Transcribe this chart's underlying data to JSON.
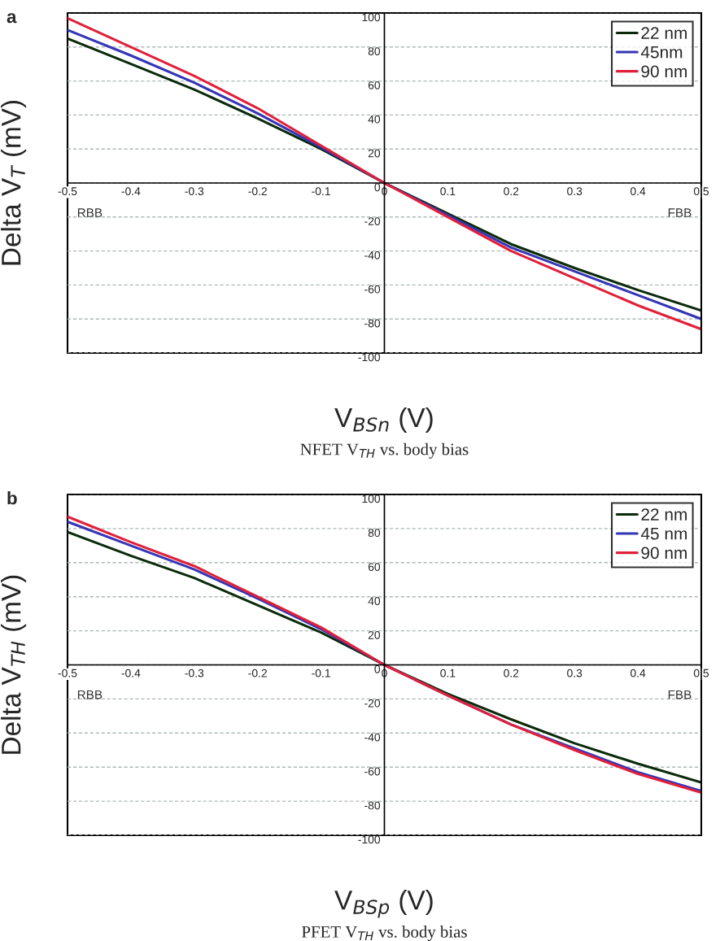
{
  "chart_data": [
    {
      "type": "line",
      "title": "a",
      "xlabel": "V$_{BSn}$ (V)",
      "ylabel": "Delta V$_{T}$ (mV)",
      "annotations": [
        "RBB",
        "FBB",
        "NFET V$_{TH}$ vs. body bias"
      ],
      "x": [
        -0.5,
        -0.4,
        -0.3,
        -0.2,
        -0.1,
        0,
        0.1,
        0.2,
        0.3,
        0.4,
        0.5
      ],
      "series": [
        {
          "name": "22 nm",
          "color": "#0a2a0a",
          "values": [
            85,
            70,
            55,
            38,
            20,
            0,
            -18,
            -36,
            -50,
            -63,
            -75
          ]
        },
        {
          "name": "45nm",
          "color": "#3535b5",
          "values": [
            90,
            75,
            59,
            41,
            21,
            0,
            -19,
            -38,
            -52,
            -66,
            -80
          ]
        },
        {
          "name": "90 nm",
          "color": "#e0203a",
          "values": [
            97,
            80,
            63,
            44,
            22,
            0,
            -20,
            -40,
            -56,
            -72,
            -86
          ]
        }
      ],
      "xlim": [
        -0.5,
        0.5
      ],
      "xticks": [
        -0.5,
        -0.4,
        -0.3,
        -0.2,
        -0.1,
        0,
        0.1,
        0.2,
        0.3,
        0.4,
        0.5
      ],
      "ylim": [
        -100,
        100
      ],
      "yticks": [
        -100,
        -80,
        -60,
        -40,
        -20,
        0,
        20,
        40,
        60,
        80,
        100
      ],
      "grid": "y",
      "legend": "top right",
      "marker": "none",
      "line_style": "solid"
    },
    {
      "type": "line",
      "title": "b",
      "xlabel": "V$_{BSp}$ (V)",
      "ylabel": "Delta V$_{TH}$ (mV)",
      "annotations": [
        "RBB",
        "FBB",
        "PFET V$_{TH}$ vs. body bias"
      ],
      "x": [
        -0.5,
        -0.4,
        -0.3,
        -0.2,
        -0.1,
        0,
        0.1,
        0.2,
        0.3,
        0.4,
        0.5
      ],
      "series": [
        {
          "name": "22 nm",
          "color": "#0a2a0a",
          "values": [
            78,
            64,
            51,
            35,
            19,
            0,
            -17,
            -32,
            -46,
            -58,
            -69
          ]
        },
        {
          "name": "45 nm",
          "color": "#3535b5",
          "values": [
            84,
            70,
            56,
            39,
            21,
            0,
            -18,
            -35,
            -49,
            -63,
            -74
          ]
        },
        {
          "name": "90 nm",
          "color": "#e0203a",
          "values": [
            87,
            72,
            58,
            40,
            22,
            0,
            -18,
            -35,
            -50,
            -64,
            -75
          ]
        }
      ],
      "xlim": [
        -0.5,
        0.5
      ],
      "xticks": [
        -0.5,
        -0.4,
        -0.3,
        -0.2,
        -0.1,
        0,
        0.1,
        0.2,
        0.3,
        0.4,
        0.5
      ],
      "ylim": [
        -100,
        100
      ],
      "yticks": [
        -100,
        -80,
        -60,
        -40,
        -20,
        0,
        20,
        40,
        60,
        80,
        100
      ],
      "grid": "y",
      "legend": "top right",
      "marker": "none",
      "line_style": "solid"
    }
  ]
}
